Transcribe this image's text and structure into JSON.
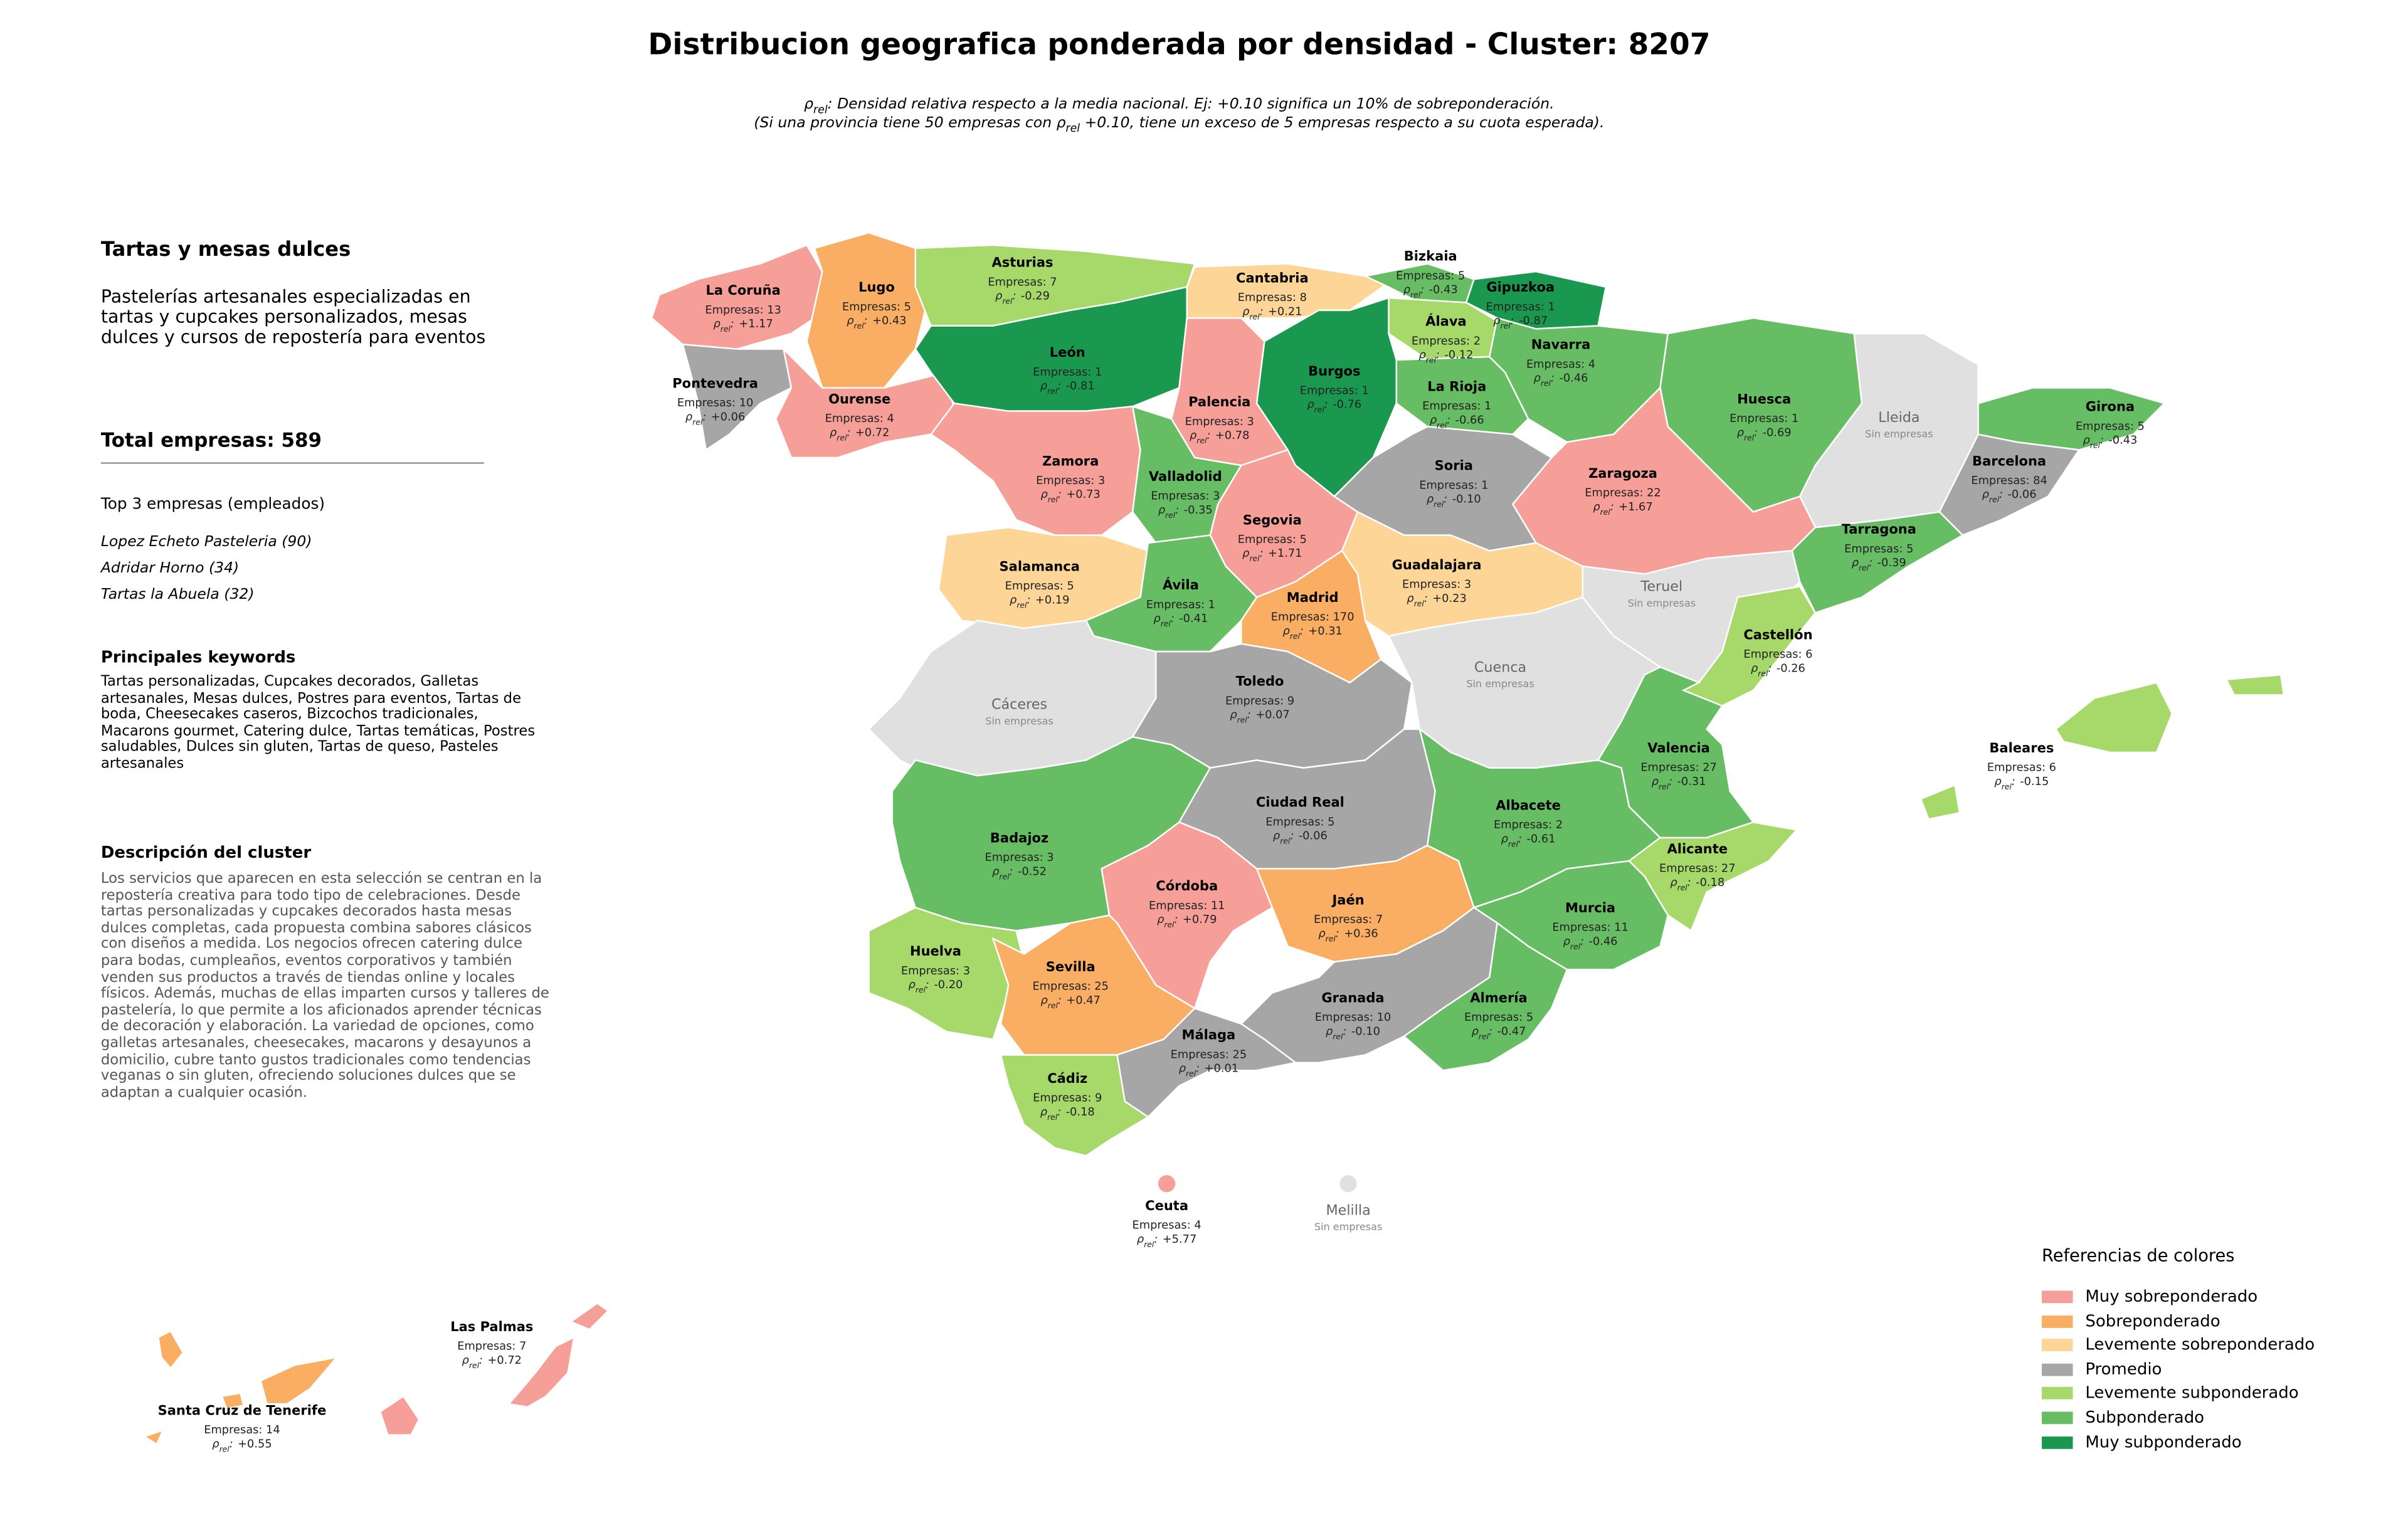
{
  "header": {
    "title": "Distribucion geografica ponderada por densidad - Cluster: 8207",
    "note_line1": ": Densidad relativa respecto a la media nacional. Ej: +0.10 significa un 10% de sobreponderación.",
    "note_line2_before": "(Si una provincia tiene 50 empresas con ",
    "note_line2_after": " +0.10, tiene un exceso de 5 empresas respecto a su cuota esperada)."
  },
  "labels": {
    "rho": "ρ",
    "rel": "rel",
    "sep": ":"
  },
  "panel": {
    "cluster_name": "Tartas y mesas dulces",
    "summary": "Pastelerías artesanales especializadas en tartas y cupcakes personalizados, mesas dulces y cursos de repostería para eventos",
    "total": "Total empresas: 589",
    "top_heading": "Top 3 empresas (empleados)",
    "top": [
      "Lopez Echeto Pasteleria (90)",
      "Adridar Horno (34)",
      "Tartas la Abuela (32)"
    ],
    "keywords_heading": "Principales keywords",
    "keywords": "Tartas personalizadas, Cupcakes decorados, Galletas artesanales, Mesas dulces, Postres para eventos, Tartas de boda, Cheesecakes caseros, Bizcochos tradicionales, Macarons gourmet, Catering dulce, Tartas temáticas, Postres saludables, Dulces sin gluten, Tartas de queso, Pasteles artesanales",
    "description_heading": "Descripción del cluster",
    "description": "Los servicios que aparecen en esta selección se centran en la repostería creativa para todo tipo de celebraciones. Desde tartas personalizadas y cupcakes decorados hasta mesas dulces completas, cada propuesta combina sabores clásicos con diseños a medida. Los negocios ofrecen catering dulce para bodas, cumpleaños, eventos corporativos y también venden sus productos a través de tiendas online y locales físicos. Además, muchas de ellas imparten cursos y talleres de pastelería, lo que permite a los aficionados aprender técnicas de decoración y elaboración. La variedad de opciones, como galletas artesanales, cheesecakes, macarons y desayunos a domicilio, cubre tanto gustos tradicionales como tendencias veganas o sin gluten, ofreciendo soluciones dulces que se adaptan a cualquier ocasión."
  },
  "legend": {
    "title": "Referencias de colores",
    "items": [
      {
        "label": "Muy sobreponderado",
        "color": "#f69f98"
      },
      {
        "label": "Sobreponderado",
        "color": "#f9ae63"
      },
      {
        "label": "Levemente sobreponderado",
        "color": "#fcd597"
      },
      {
        "label": "Promedio",
        "color": "#a6a6a6"
      },
      {
        "label": "Levemente subponderado",
        "color": "#a6d96a"
      },
      {
        "label": "Subponderado",
        "color": "#66bd63"
      },
      {
        "label": "Muy subponderado",
        "color": "#1a9850"
      }
    ]
  },
  "provinces": [
    {
      "name": "La Coruña",
      "count": "Empresas: 13",
      "rho": "+1.17",
      "color": "#f69f98"
    },
    {
      "name": "Lugo",
      "count": "Empresas: 5",
      "rho": "+0.43",
      "color": "#f9ae63"
    },
    {
      "name": "Asturias",
      "count": "Empresas: 7",
      "rho": "-0.29",
      "color": "#a6d96a"
    },
    {
      "name": "Cantabria",
      "count": "Empresas: 8",
      "rho": "+0.21",
      "color": "#fcd597"
    },
    {
      "name": "Bizkaia",
      "count": "Empresas: 5",
      "rho": "-0.43",
      "color": "#66bd63"
    },
    {
      "name": "Gipuzkoa",
      "count": "Empresas: 1",
      "rho": "-0.87",
      "color": "#1a9850"
    },
    {
      "name": "Álava",
      "count": "Empresas: 2",
      "rho": "-0.12",
      "color": "#a6d96a"
    },
    {
      "name": "Navarra",
      "count": "Empresas: 4",
      "rho": "-0.46",
      "color": "#66bd63"
    },
    {
      "name": "La Rioja",
      "count": "Empresas: 1",
      "rho": "-0.66",
      "color": "#66bd63"
    },
    {
      "name": "Pontevedra",
      "count": "Empresas: 10",
      "rho": "+0.06",
      "color": "#a6a6a6"
    },
    {
      "name": "Ourense",
      "count": "Empresas: 4",
      "rho": "+0.72",
      "color": "#f69f98"
    },
    {
      "name": "León",
      "count": "Empresas: 1",
      "rho": "-0.81",
      "color": "#1a9850"
    },
    {
      "name": "Palencia",
      "count": "Empresas: 3",
      "rho": "+0.78",
      "color": "#f69f98"
    },
    {
      "name": "Burgos",
      "count": "Empresas: 1",
      "rho": "-0.76",
      "color": "#1a9850"
    },
    {
      "name": "Huesca",
      "count": "Empresas: 1",
      "rho": "-0.69",
      "color": "#66bd63"
    },
    {
      "name": "Lleida",
      "count": "Sin empresas",
      "color": "#e0e0e0"
    },
    {
      "name": "Girona",
      "count": "Empresas: 5",
      "rho": "-0.43",
      "color": "#66bd63"
    },
    {
      "name": "Barcelona",
      "count": "Empresas: 84",
      "rho": "-0.06",
      "color": "#a6a6a6"
    },
    {
      "name": "Zaragoza",
      "count": "Empresas: 22",
      "rho": "+1.67",
      "color": "#f69f98"
    },
    {
      "name": "Soria",
      "count": "Empresas: 1",
      "rho": "-0.10",
      "color": "#a6a6a6"
    },
    {
      "name": "Zamora",
      "count": "Empresas: 3",
      "rho": "+0.73",
      "color": "#f69f98"
    },
    {
      "name": "Valladolid",
      "count": "Empresas: 3",
      "rho": "-0.35",
      "color": "#66bd63"
    },
    {
      "name": "Segovia",
      "count": "Empresas: 5",
      "rho": "+1.71",
      "color": "#f69f98"
    },
    {
      "name": "Tarragona",
      "count": "Empresas: 5",
      "rho": "-0.39",
      "color": "#66bd63"
    },
    {
      "name": "Salamanca",
      "count": "Empresas: 5",
      "rho": "+0.19",
      "color": "#fcd597"
    },
    {
      "name": "Ávila",
      "count": "Empresas: 1",
      "rho": "-0.41",
      "color": "#66bd63"
    },
    {
      "name": "Madrid",
      "count": "Empresas: 170",
      "rho": "+0.31",
      "color": "#f9ae63"
    },
    {
      "name": "Guadalajara",
      "count": "Empresas: 3",
      "rho": "+0.23",
      "color": "#fcd597"
    },
    {
      "name": "Teruel",
      "count": "Sin empresas",
      "color": "#e0e0e0"
    },
    {
      "name": "Castellón",
      "count": "Empresas: 6",
      "rho": "-0.26",
      "color": "#a6d96a"
    },
    {
      "name": "Cáceres",
      "count": "Sin empresas",
      "color": "#e0e0e0"
    },
    {
      "name": "Toledo",
      "count": "Empresas: 9",
      "rho": "+0.07",
      "color": "#a6a6a6"
    },
    {
      "name": "Cuenca",
      "count": "Sin empresas",
      "color": "#e0e0e0"
    },
    {
      "name": "Valencia",
      "count": "Empresas: 27",
      "rho": "-0.31",
      "color": "#66bd63"
    },
    {
      "name": "Baleares",
      "count": "Empresas: 6",
      "rho": "-0.15",
      "color": "#a6d96a"
    },
    {
      "name": "Badajoz",
      "count": "Empresas: 3",
      "rho": "-0.52",
      "color": "#66bd63"
    },
    {
      "name": "Ciudad Real",
      "count": "Empresas: 5",
      "rho": "-0.06",
      "color": "#a6a6a6"
    },
    {
      "name": "Albacete",
      "count": "Empresas: 2",
      "rho": "-0.61",
      "color": "#66bd63"
    },
    {
      "name": "Alicante",
      "count": "Empresas: 27",
      "rho": "-0.18",
      "color": "#a6d96a"
    },
    {
      "name": "Córdoba",
      "count": "Empresas: 11",
      "rho": "+0.79",
      "color": "#f69f98"
    },
    {
      "name": "Jaén",
      "count": "Empresas: 7",
      "rho": "+0.36",
      "color": "#f9ae63"
    },
    {
      "name": "Murcia",
      "count": "Empresas: 11",
      "rho": "-0.46",
      "color": "#66bd63"
    },
    {
      "name": "Huelva",
      "count": "Empresas: 3",
      "rho": "-0.20",
      "color": "#a6d96a"
    },
    {
      "name": "Sevilla",
      "count": "Empresas: 25",
      "rho": "+0.47",
      "color": "#f9ae63"
    },
    {
      "name": "Granada",
      "count": "Empresas: 10",
      "rho": "-0.10",
      "color": "#a6a6a6"
    },
    {
      "name": "Almería",
      "count": "Empresas: 5",
      "rho": "-0.47",
      "color": "#66bd63"
    },
    {
      "name": "Málaga",
      "count": "Empresas: 25",
      "rho": "+0.01",
      "color": "#a6a6a6"
    },
    {
      "name": "Cádiz",
      "count": "Empresas: 9",
      "rho": "-0.18",
      "color": "#a6d96a"
    },
    {
      "name": "Ceuta",
      "count": "Empresas: 4",
      "rho": "+5.77",
      "color": "#f69f98"
    },
    {
      "name": "Melilla",
      "count": "Sin empresas",
      "color": "#e0e0e0"
    },
    {
      "name": "Las Palmas",
      "count": "Empresas: 7",
      "rho": "+0.72",
      "color": "#f69f98"
    },
    {
      "name": "Santa Cruz de Tenerife",
      "count": "Empresas: 14",
      "rho": "+0.55",
      "color": "#f9ae63"
    }
  ]
}
